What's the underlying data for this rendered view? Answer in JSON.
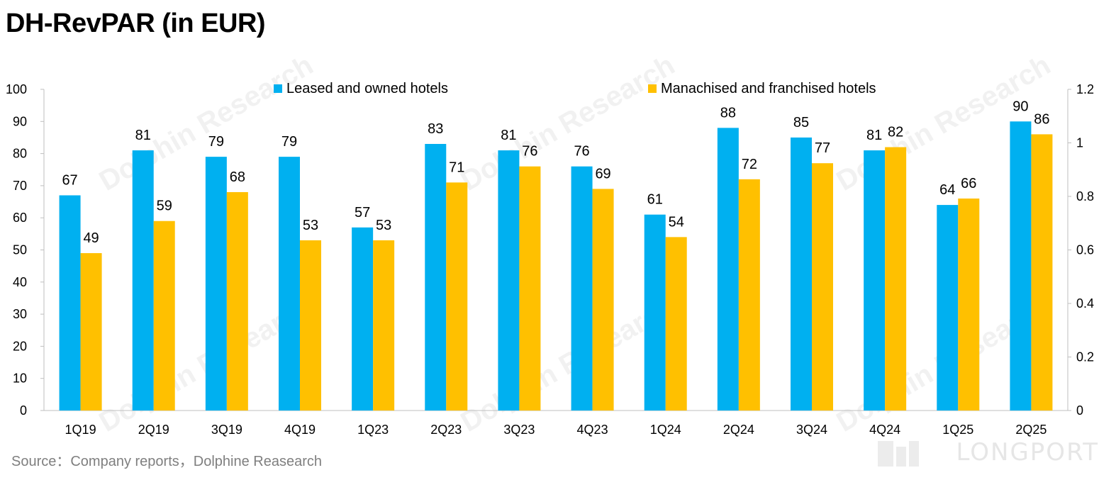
{
  "title": "DH-RevPAR (in EUR)",
  "source": "Source：Company reports，Dolphine Reasearch",
  "watermark": "LONGPORT",
  "watermark_logo": "Dolphin Research",
  "chart_data": {
    "type": "bar",
    "categories": [
      "1Q19",
      "2Q19",
      "3Q19",
      "4Q19",
      "1Q23",
      "2Q23",
      "3Q23",
      "4Q23",
      "1Q24",
      "2Q24",
      "3Q24",
      "4Q24",
      "1Q25",
      "2Q25"
    ],
    "series": [
      {
        "name": "Leased and owned hotels",
        "color": "#00b0f0",
        "values": [
          67,
          81,
          79,
          79,
          57,
          83,
          81,
          76,
          61,
          88,
          85,
          81,
          64,
          90
        ]
      },
      {
        "name": "Manachised and franchised hotels",
        "color": "#ffc000",
        "values": [
          49,
          59,
          68,
          53,
          53,
          71,
          76,
          69,
          54,
          72,
          77,
          82,
          66,
          86
        ]
      }
    ],
    "ylim": [
      0,
      100
    ],
    "yticks": [
      "0",
      "10",
      "20",
      "30",
      "40",
      "50",
      "60",
      "70",
      "80",
      "90",
      "100"
    ],
    "y2lim": [
      0,
      1.2
    ],
    "y2ticks": [
      "0",
      "0.2",
      "0.4",
      "0.6",
      "0.8",
      "1",
      "1.2"
    ],
    "legend_position": "top",
    "grid": false
  }
}
